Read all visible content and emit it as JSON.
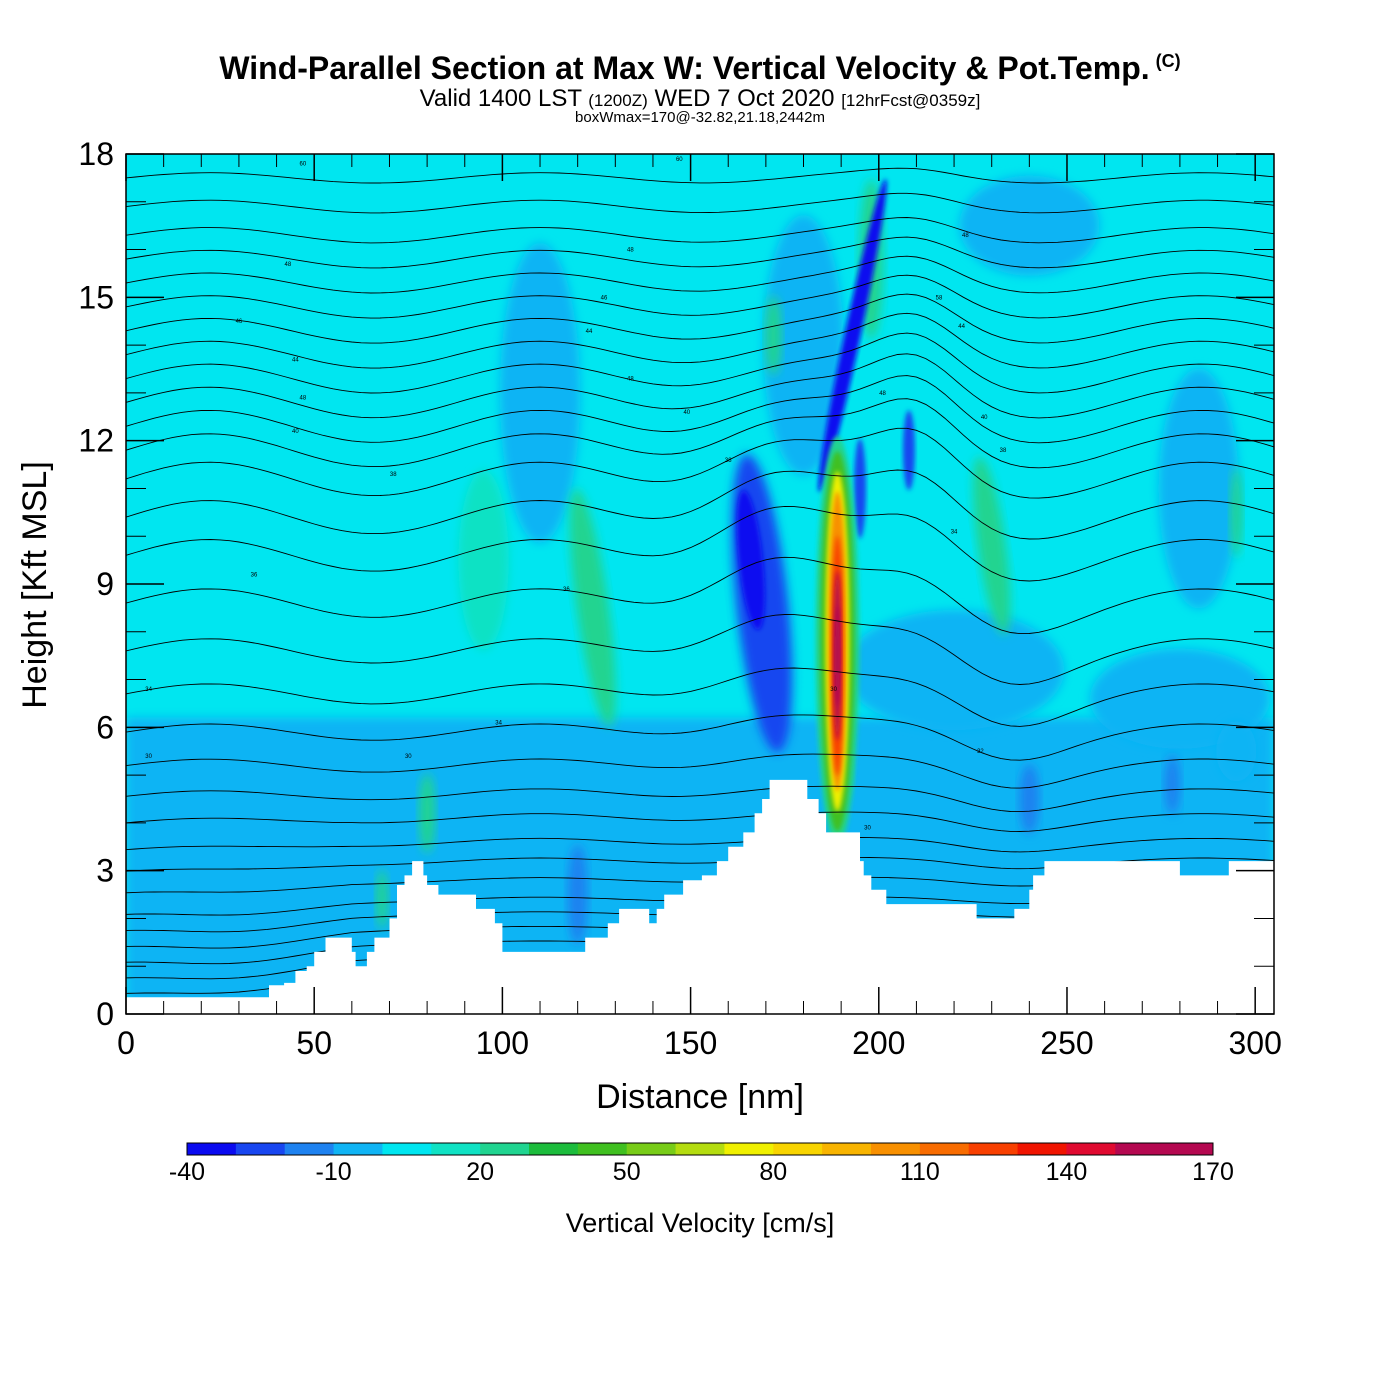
{
  "header": {
    "title_main": "Wind-Parallel Section at Max W: Vertical Velocity & Pot.Temp.",
    "title_mark": "(C)",
    "subtitle_a": "Valid 1400 LST",
    "subtitle_b": "(1200Z)",
    "subtitle_c": "WED 7 Oct 2020",
    "subtitle_d": "[12hrFcst@0359z]",
    "subline": "boxWmax=170@-32.82,21.18,2442m"
  },
  "chart_data": {
    "type": "heatmap",
    "title": "Wind-Parallel Section at Max W: Vertical Velocity & Pot.Temp.",
    "xlabel": "Distance [nm]",
    "ylabel": "Height [Kft MSL]",
    "xlim": [
      0,
      305
    ],
    "ylim": [
      0,
      18
    ],
    "x_ticks": [
      "0",
      "50",
      "100",
      "150",
      "200",
      "250",
      "300"
    ],
    "y_ticks": [
      "0",
      "3",
      "6",
      "9",
      "12",
      "15",
      "18"
    ],
    "x_tick_values": [
      0,
      50,
      100,
      150,
      200,
      250,
      300
    ],
    "y_tick_values": [
      0,
      3,
      6,
      9,
      12,
      15,
      18
    ],
    "colorbar": {
      "title": "Vertical Velocity [cm/s]",
      "bins": [
        -40,
        -30,
        -20,
        -10,
        0,
        10,
        20,
        30,
        40,
        50,
        60,
        70,
        80,
        90,
        100,
        110,
        120,
        130,
        140,
        150,
        160,
        170
      ],
      "colors": [
        "#0a0af0",
        "#1846f0",
        "#1e82f0",
        "#10b4f4",
        "#00e6f0",
        "#10e2c4",
        "#20d490",
        "#1cbc3c",
        "#40c020",
        "#78cc18",
        "#b4dc10",
        "#f0f000",
        "#f8d400",
        "#f8b400",
        "#f89000",
        "#f86c00",
        "#f84000",
        "#f01400",
        "#e00a30",
        "#b40850",
        "#b40850"
      ],
      "labels": [
        "-40",
        "-10",
        "20",
        "50",
        "80",
        "110",
        "140",
        "170"
      ],
      "label_values": [
        -40,
        -10,
        20,
        50,
        80,
        110,
        140,
        170
      ]
    },
    "max_updraft": {
      "value": 170,
      "x": 189,
      "height_kft": 7.5
    },
    "terrain_kft": [
      [
        0,
        0.35
      ],
      [
        35,
        0.35
      ],
      [
        38,
        0.6
      ],
      [
        42,
        0.65
      ],
      [
        45,
        0.9
      ],
      [
        48,
        1.0
      ],
      [
        50,
        1.3
      ],
      [
        53,
        1.6
      ],
      [
        56,
        1.6
      ],
      [
        60,
        1.3
      ],
      [
        61,
        1.0
      ],
      [
        63,
        1.0
      ],
      [
        64,
        1.3
      ],
      [
        66,
        1.6
      ],
      [
        68,
        1.6
      ],
      [
        70,
        2.0
      ],
      [
        72,
        2.7
      ],
      [
        74,
        2.9
      ],
      [
        76,
        3.2
      ],
      [
        79,
        2.9
      ],
      [
        80,
        2.7
      ],
      [
        83,
        2.5
      ],
      [
        90,
        2.5
      ],
      [
        93,
        2.2
      ],
      [
        96,
        2.2
      ],
      [
        98,
        1.9
      ],
      [
        100,
        1.3
      ],
      [
        110,
        1.3
      ],
      [
        120,
        1.3
      ],
      [
        122,
        1.6
      ],
      [
        126,
        1.6
      ],
      [
        128,
        1.9
      ],
      [
        131,
        2.2
      ],
      [
        137,
        2.2
      ],
      [
        139,
        1.9
      ],
      [
        140,
        1.9
      ],
      [
        141,
        2.2
      ],
      [
        143,
        2.5
      ],
      [
        145,
        2.5
      ],
      [
        148,
        2.8
      ],
      [
        153,
        2.9
      ],
      [
        157,
        3.2
      ],
      [
        160,
        3.5
      ],
      [
        164,
        3.8
      ],
      [
        167,
        4.2
      ],
      [
        169,
        4.5
      ],
      [
        171,
        4.9
      ],
      [
        178,
        4.9
      ],
      [
        181,
        4.5
      ],
      [
        184,
        4.2
      ],
      [
        186,
        3.8
      ],
      [
        193,
        3.8
      ],
      [
        195,
        3.2
      ],
      [
        196,
        2.9
      ],
      [
        198,
        2.6
      ],
      [
        200,
        2.6
      ],
      [
        202,
        2.3
      ],
      [
        212,
        2.3
      ],
      [
        218,
        2.3
      ],
      [
        226,
        2.0
      ],
      [
        234,
        2.0
      ],
      [
        236,
        2.2
      ],
      [
        240,
        2.6
      ],
      [
        241,
        2.9
      ],
      [
        244,
        3.2
      ],
      [
        250,
        3.2
      ],
      [
        258,
        3.2
      ],
      [
        276,
        3.2
      ],
      [
        280,
        2.9
      ],
      [
        290,
        2.9
      ],
      [
        293,
        3.2
      ],
      [
        305,
        3.2
      ]
    ],
    "contour_labels": [
      {
        "x": 47,
        "y": 17.8,
        "text": "60"
      },
      {
        "x": 147,
        "y": 17.9,
        "text": "60"
      },
      {
        "x": 43,
        "y": 15.7,
        "text": "48"
      },
      {
        "x": 134,
        "y": 16.0,
        "text": "48"
      },
      {
        "x": 223,
        "y": 16.3,
        "text": "48"
      },
      {
        "x": 30,
        "y": 14.5,
        "text": "46"
      },
      {
        "x": 127,
        "y": 15.0,
        "text": "46"
      },
      {
        "x": 216,
        "y": 15.0,
        "text": "58"
      },
      {
        "x": 45,
        "y": 13.7,
        "text": "44"
      },
      {
        "x": 123,
        "y": 14.3,
        "text": "44"
      },
      {
        "x": 222,
        "y": 14.4,
        "text": "44"
      },
      {
        "x": 47,
        "y": 12.9,
        "text": "48"
      },
      {
        "x": 134,
        "y": 13.3,
        "text": "48"
      },
      {
        "x": 201,
        "y": 13.0,
        "text": "48"
      },
      {
        "x": 45,
        "y": 12.2,
        "text": "40"
      },
      {
        "x": 149,
        "y": 12.6,
        "text": "40"
      },
      {
        "x": 228,
        "y": 12.5,
        "text": "40"
      },
      {
        "x": 71,
        "y": 11.3,
        "text": "38"
      },
      {
        "x": 160,
        "y": 11.6,
        "text": "38"
      },
      {
        "x": 233,
        "y": 11.8,
        "text": "38"
      },
      {
        "x": 34,
        "y": 9.2,
        "text": "36"
      },
      {
        "x": 117,
        "y": 8.9,
        "text": "36"
      },
      {
        "x": 220,
        "y": 10.1,
        "text": "34"
      },
      {
        "x": 6,
        "y": 6.8,
        "text": "34"
      },
      {
        "x": 99,
        "y": 6.1,
        "text": "34"
      },
      {
        "x": 188,
        "y": 6.8,
        "text": "30"
      },
      {
        "x": 6,
        "y": 5.4,
        "text": "30"
      },
      {
        "x": 75,
        "y": 5.4,
        "text": "30"
      },
      {
        "x": 227,
        "y": 5.5,
        "text": "32"
      },
      {
        "x": 197,
        "y": 3.9,
        "text": "30"
      }
    ]
  }
}
